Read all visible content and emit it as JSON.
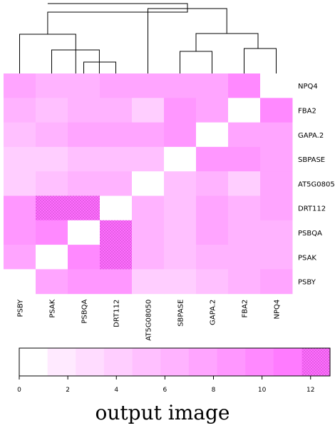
{
  "chart_data": {
    "type": "heatmap",
    "rows": [
      "NPQ4",
      "FBA2",
      "GAPA.2",
      "SBPASE",
      "AT5G08050",
      "DRT112",
      "PSBQA",
      "PSAK",
      "PSBY"
    ],
    "columns": [
      "PSBY",
      "PSAK",
      "PSBQA",
      "DRT112",
      "AT5G08050",
      "SBPASE",
      "GAPA.2",
      "FBA2",
      "NPQ4"
    ],
    "values": [
      [
        7,
        6,
        6,
        7,
        7,
        8,
        8,
        10,
        0
      ],
      [
        6,
        5,
        6,
        6,
        4,
        9,
        8,
        0,
        10
      ],
      [
        5,
        6,
        8,
        8,
        7,
        9,
        0,
        8,
        8
      ],
      [
        4,
        4,
        5,
        5,
        5,
        0,
        9,
        9,
        8
      ],
      [
        4,
        5,
        6,
        6,
        0,
        5,
        6,
        4,
        7
      ],
      [
        9,
        12,
        12,
        0,
        6,
        5,
        7,
        6,
        7
      ],
      [
        9,
        10,
        0,
        12,
        6,
        5,
        8,
        6,
        6
      ],
      [
        8,
        0,
        10,
        12,
        6,
        5,
        6,
        6,
        6
      ],
      [
        0,
        8,
        9,
        9,
        4,
        4,
        5,
        6,
        7
      ]
    ],
    "color_low": "#ffffff",
    "color_high": "#ff66ff",
    "zlim": [
      0,
      12.8
    ],
    "zticks": [
      0,
      2,
      4,
      6,
      8,
      10,
      12
    ],
    "caption": "output image"
  }
}
